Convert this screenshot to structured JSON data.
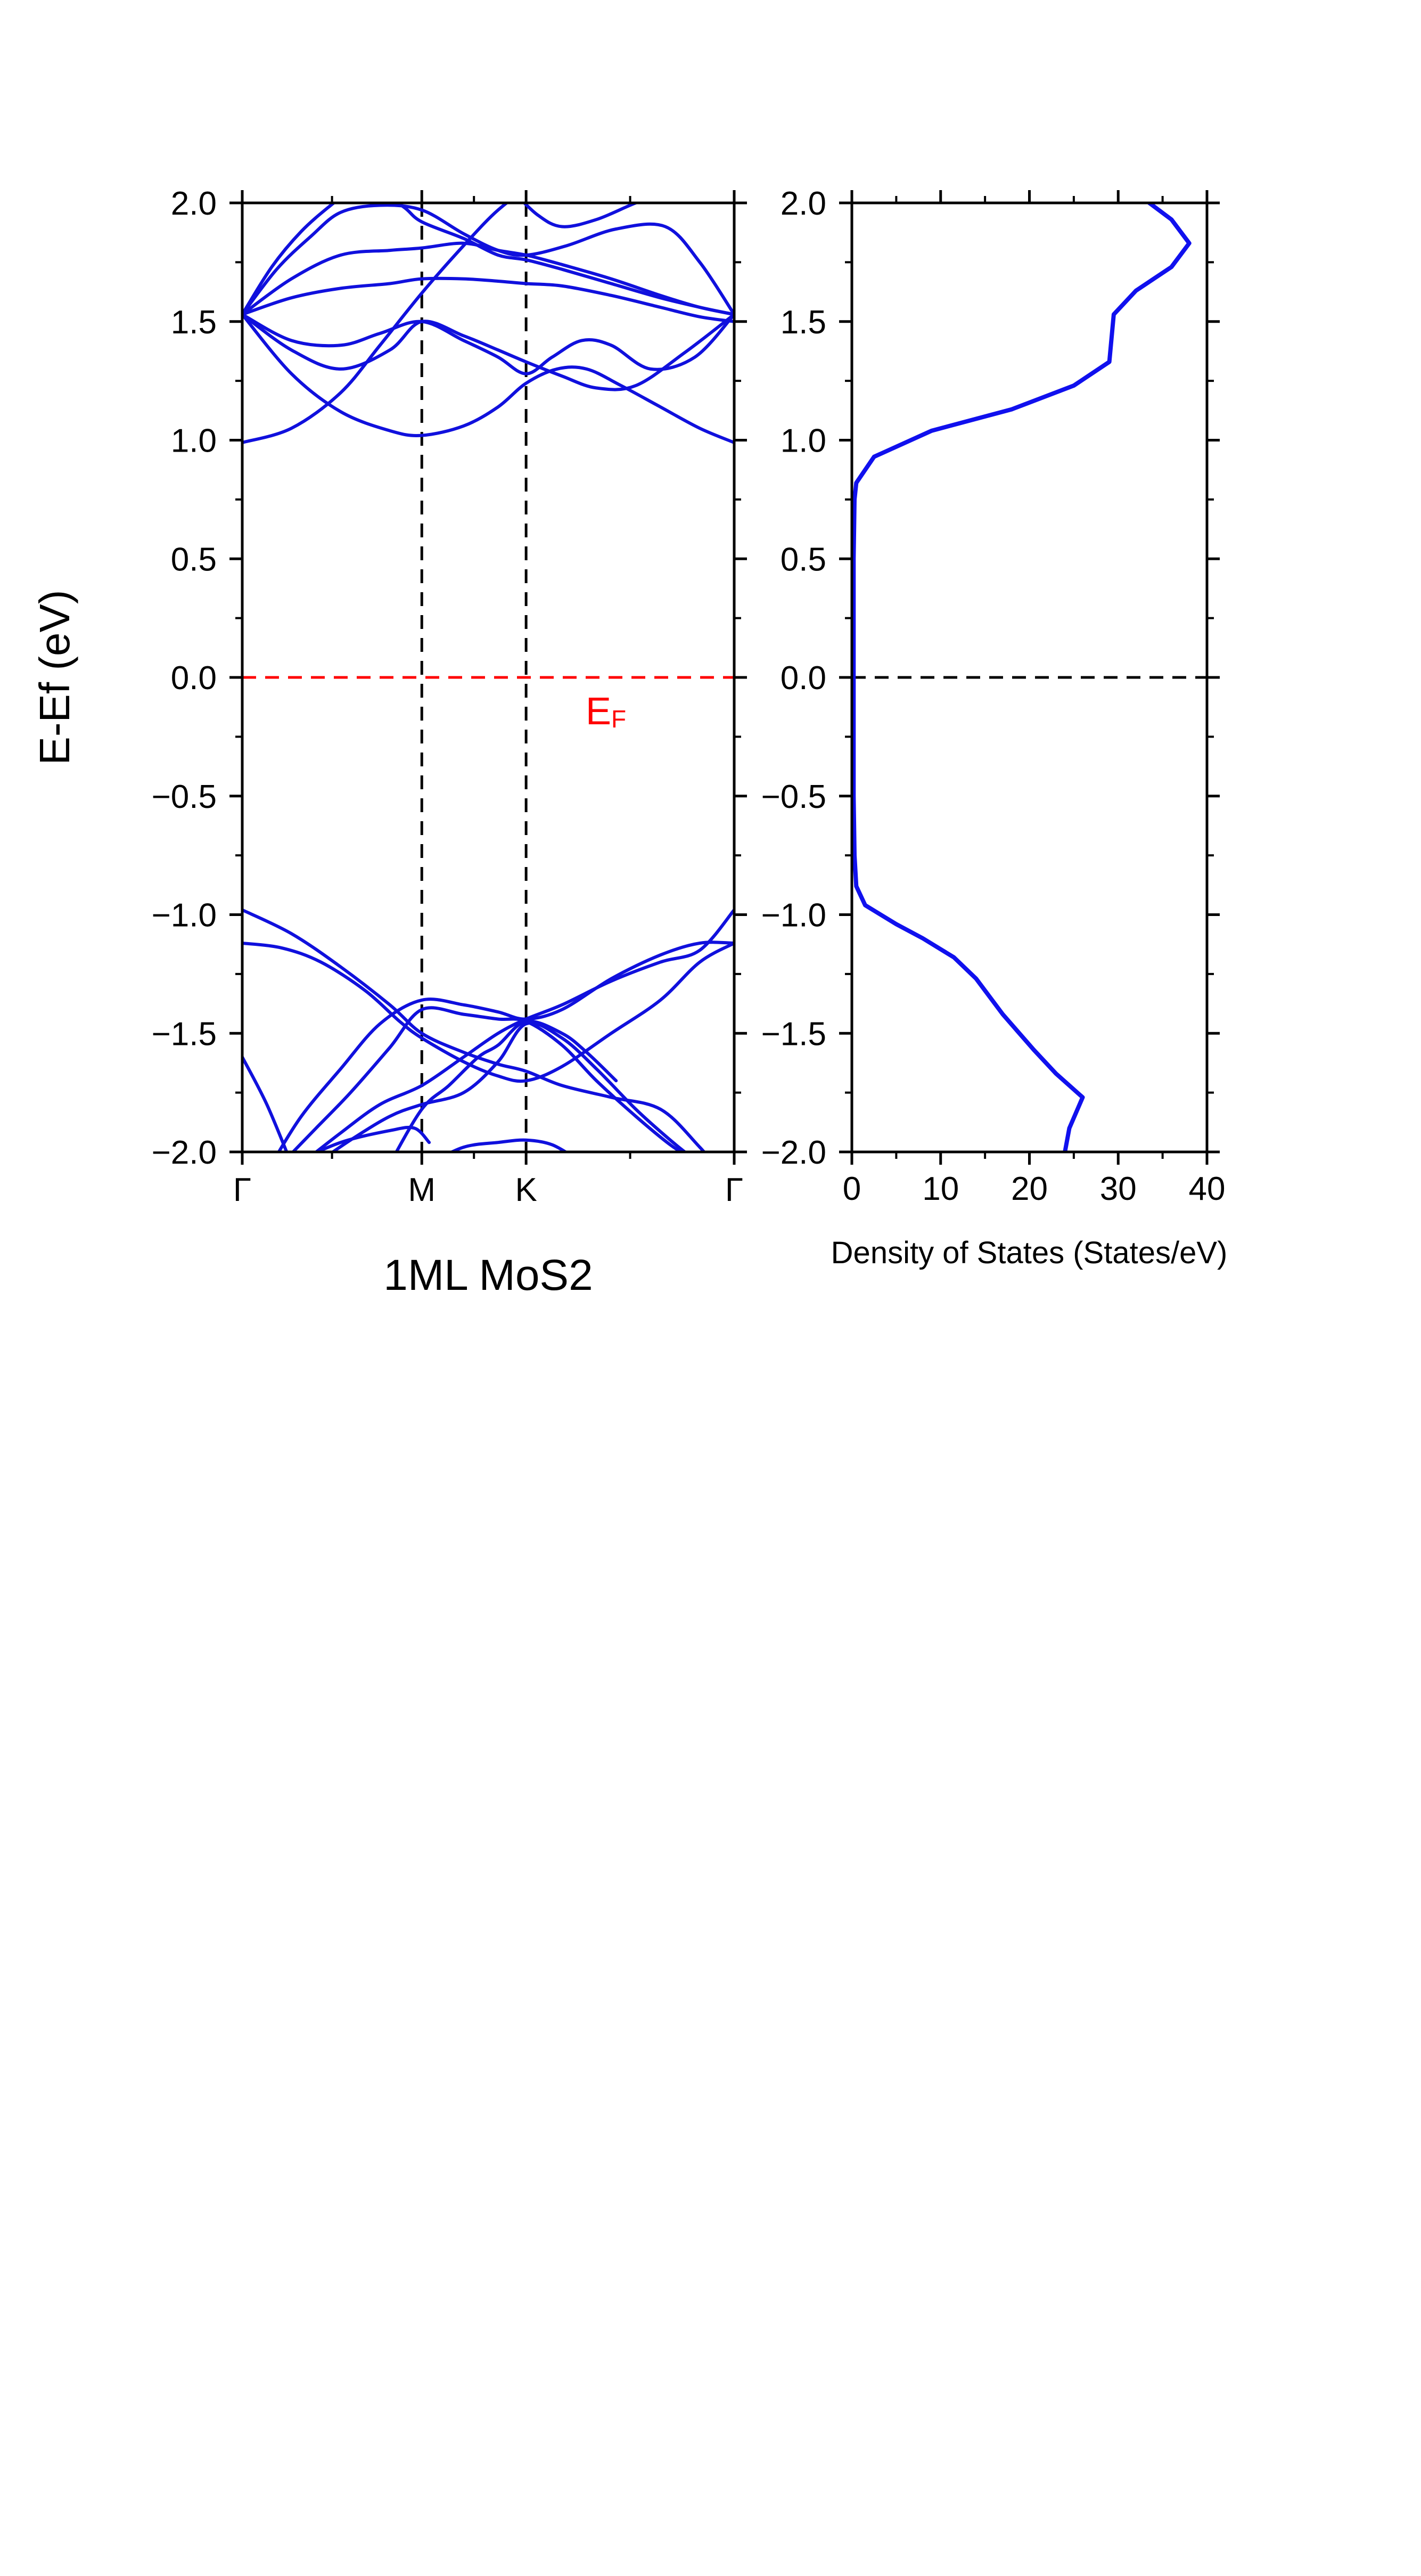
{
  "colors": {
    "band": "#1010dd",
    "fermi_line": "#ff0000",
    "fermi_label": "#ff0000",
    "dos_line": "#1010ee",
    "axis": "#000000"
  },
  "chart_data": [
    {
      "type": "line",
      "subtype": "band-structure",
      "xlabel": "1ML MoS2",
      "ylabel": "E-Ef (eV)",
      "ylim": [
        -2.0,
        2.0
      ],
      "xlim": [
        0,
        1
      ],
      "y_ticks": [
        "2.0",
        "1.5",
        "1.0",
        "0.5",
        "0.0",
        "−0.5",
        "−1.0",
        "−1.5",
        "−2.0"
      ],
      "y_tick_values": [
        2.0,
        1.5,
        1.0,
        0.5,
        0.0,
        -0.5,
        -1.0,
        -1.5,
        -2.0
      ],
      "k_points": [
        {
          "label": "Γ",
          "x": 0.0
        },
        {
          "label": "M",
          "x": 0.365
        },
        {
          "label": "K",
          "x": 0.577
        },
        {
          "label": "Γ",
          "x": 1.0
        }
      ],
      "fermi_level": {
        "value": 0.0,
        "label_main": "E",
        "label_sub": "F"
      },
      "series": [
        {
          "x": [
            0,
            0.1,
            0.2,
            0.28,
            0.365,
            0.45,
            0.52,
            0.577,
            0.65,
            0.75,
            0.87,
            1.0
          ],
          "y": [
            0.99,
            1.05,
            1.2,
            1.4,
            1.62,
            1.82,
            1.97,
            2.05,
            2.1,
            2.1,
            2.1,
            2.1
          ]
        },
        {
          "x": [
            0,
            0.1,
            0.2,
            0.3,
            0.365,
            0.45,
            0.52,
            0.577,
            0.64,
            0.7,
            0.77,
            0.85,
            0.93,
            1.0
          ],
          "y": [
            1.53,
            1.28,
            1.12,
            1.04,
            1.02,
            1.06,
            1.14,
            1.24,
            1.3,
            1.3,
            1.23,
            1.14,
            1.05,
            0.99
          ]
        },
        {
          "x": [
            0,
            0.1,
            0.2,
            0.3,
            0.365,
            0.45,
            0.52,
            0.577,
            0.65,
            0.72,
            0.8,
            0.9,
            1.0
          ],
          "y": [
            1.53,
            1.38,
            1.3,
            1.38,
            1.5,
            1.44,
            1.38,
            1.33,
            1.27,
            1.22,
            1.23,
            1.37,
            1.53
          ]
        },
        {
          "x": [
            0,
            0.1,
            0.2,
            0.28,
            0.365,
            0.45,
            0.52,
            0.577,
            0.63,
            0.69,
            0.75,
            0.83,
            0.92,
            1.0
          ],
          "y": [
            1.53,
            1.42,
            1.4,
            1.45,
            1.5,
            1.42,
            1.35,
            1.28,
            1.35,
            1.42,
            1.4,
            1.3,
            1.35,
            1.53
          ]
        },
        {
          "x": [
            0,
            0.1,
            0.2,
            0.3,
            0.365,
            0.45,
            0.52,
            0.577,
            0.65,
            0.75,
            0.85,
            0.93,
            1.0
          ],
          "y": [
            1.53,
            1.6,
            1.64,
            1.66,
            1.68,
            1.68,
            1.67,
            1.66,
            1.65,
            1.61,
            1.56,
            1.52,
            1.5
          ]
        },
        {
          "x": [
            0,
            0.1,
            0.2,
            0.3,
            0.365,
            0.45,
            0.52,
            0.577,
            0.65,
            0.75,
            0.85,
            0.93,
            1.0
          ],
          "y": [
            1.53,
            1.68,
            1.78,
            1.8,
            1.81,
            1.83,
            1.8,
            1.78,
            1.74,
            1.68,
            1.61,
            1.56,
            1.53
          ]
        },
        {
          "x": [
            0,
            0.07,
            0.14,
            0.2,
            0.28,
            0.365,
            0.45,
            0.52,
            0.577,
            0.66,
            0.76,
            0.86,
            0.93,
            1.0
          ],
          "y": [
            1.53,
            1.72,
            1.86,
            1.96,
            1.99,
            1.97,
            1.87,
            1.8,
            1.78,
            1.82,
            1.89,
            1.9,
            1.75,
            1.53
          ]
        },
        {
          "x": [
            0,
            0.06,
            0.12,
            0.18,
            0.22
          ],
          "y": [
            1.53,
            1.73,
            1.88,
            1.99,
            2.05
          ]
        },
        {
          "x": [
            0.28,
            0.33,
            0.365,
            0.45,
            0.52,
            0.577,
            0.65,
            0.75,
            0.85,
            0.93,
            1.0
          ],
          "y": [
            2.05,
            1.98,
            1.92,
            1.85,
            1.78,
            1.76,
            1.72,
            1.66,
            1.6,
            1.56,
            1.53
          ]
        },
        {
          "x": [
            0.55,
            0.6,
            0.65,
            0.72,
            0.8,
            0.87
          ],
          "y": [
            2.05,
            1.95,
            1.9,
            1.93,
            2.0,
            2.05
          ]
        },
        {
          "x": [
            0,
            0.1,
            0.2,
            0.3,
            0.365,
            0.45,
            0.52,
            0.577,
            0.65,
            0.75,
            0.85,
            0.93,
            1.0
          ],
          "y": [
            -0.98,
            -1.08,
            -1.22,
            -1.38,
            -1.5,
            -1.58,
            -1.63,
            -1.66,
            -1.72,
            -1.77,
            -1.82,
            -1.98,
            -2.15
          ]
        },
        {
          "x": [
            0,
            0.08,
            0.16,
            0.25,
            0.32,
            0.365,
            0.45,
            0.52,
            0.577,
            0.65,
            0.75,
            0.85,
            0.93,
            1.0
          ],
          "y": [
            -1.12,
            -1.14,
            -1.2,
            -1.32,
            -1.45,
            -1.52,
            -1.62,
            -1.68,
            -1.7,
            -1.64,
            -1.5,
            -1.36,
            -1.2,
            -1.12
          ]
        },
        {
          "x": [
            0.06,
            0.12,
            0.2,
            0.28,
            0.365,
            0.45,
            0.52,
            0.577,
            0.65,
            0.75,
            0.85,
            0.93,
            1.0
          ],
          "y": [
            -2.05,
            -1.85,
            -1.65,
            -1.46,
            -1.36,
            -1.38,
            -1.41,
            -1.44,
            -1.4,
            -1.27,
            -1.17,
            -1.12,
            -1.12
          ]
        },
        {
          "x": [
            0.08,
            0.15,
            0.22,
            0.3,
            0.365,
            0.45,
            0.52,
            0.577,
            0.65,
            0.72,
            0.8,
            0.87,
            0.93,
            1.0
          ],
          "y": [
            -2.05,
            -1.9,
            -1.75,
            -1.56,
            -1.4,
            -1.42,
            -1.44,
            -1.45,
            -1.55,
            -1.7,
            -1.85,
            -1.97,
            -2.05,
            -2.15
          ]
        },
        {
          "x": [
            0.12,
            0.2,
            0.28,
            0.365,
            0.45,
            0.52,
            0.577,
            0.65,
            0.75,
            0.85,
            0.93,
            1.0
          ],
          "y": [
            -2.05,
            -1.92,
            -1.8,
            -1.72,
            -1.6,
            -1.5,
            -1.44,
            -1.38,
            -1.28,
            -1.2,
            -1.15,
            -0.98
          ]
        },
        {
          "x": [
            0.15,
            0.22,
            0.3,
            0.365,
            0.45,
            0.52,
            0.577,
            0.65,
            0.72,
            0.8,
            0.87,
            0.93
          ],
          "y": [
            -2.05,
            -1.95,
            -1.85,
            -1.8,
            -1.75,
            -1.62,
            -1.46,
            -1.52,
            -1.65,
            -1.82,
            -1.95,
            -2.05
          ]
        },
        {
          "x": [
            0.3,
            0.365,
            0.42,
            0.48,
            0.52,
            0.577,
            0.65,
            0.7,
            0.76
          ],
          "y": [
            -2.05,
            -1.82,
            -1.72,
            -1.6,
            -1.55,
            -1.45,
            -1.5,
            -1.58,
            -1.7
          ]
        },
        {
          "x": [
            0.38,
            0.45,
            0.52,
            0.577,
            0.63,
            0.68
          ],
          "y": [
            -2.05,
            -1.98,
            -1.96,
            -1.95,
            -1.97,
            -2.03
          ]
        },
        {
          "x": [
            0.1,
            0.2,
            0.3,
            0.35,
            0.38
          ],
          "y": [
            -2.05,
            -1.96,
            -1.91,
            -1.9,
            -1.96
          ]
        },
        {
          "x": [
            0,
            0.05,
            0.1
          ],
          "y": [
            -1.6,
            -1.8,
            -2.05
          ]
        }
      ]
    },
    {
      "type": "line",
      "subtype": "density-of-states",
      "xlabel": "Density of States (States/eV)",
      "ylabel": "",
      "xlim": [
        0,
        40
      ],
      "ylim": [
        -2.0,
        2.0
      ],
      "x_ticks": [
        "0",
        "10",
        "20",
        "30",
        "40"
      ],
      "x_tick_values": [
        0,
        10,
        20,
        30,
        40
      ],
      "y_ticks": [
        "2.0",
        "1.5",
        "1.0",
        "0.5",
        "0.0",
        "−0.5",
        "−1.0",
        "−1.5",
        "−2.0"
      ],
      "y_tick_values": [
        2.0,
        1.5,
        1.0,
        0.5,
        0.0,
        -0.5,
        -1.0,
        -1.5,
        -2.0
      ],
      "fermi_level": {
        "value": 0.0
      },
      "series": [
        {
          "x": [
            24,
            24.5,
            26,
            23,
            20.5,
            17,
            14,
            11.5,
            8,
            5,
            1.5,
            0.5,
            0.3,
            0.2,
            0.2,
            0.2,
            0.3,
            0.5,
            2.5,
            9,
            18,
            25,
            29,
            29.5,
            32,
            36,
            38,
            36,
            33.5
          ],
          "y": [
            -2.0,
            -1.9,
            -1.77,
            -1.67,
            -1.57,
            -1.42,
            -1.27,
            -1.18,
            -1.1,
            -1.04,
            -0.96,
            -0.88,
            -0.75,
            -0.5,
            0.0,
            0.5,
            0.75,
            0.82,
            0.93,
            1.04,
            1.13,
            1.23,
            1.33,
            1.53,
            1.63,
            1.73,
            1.83,
            1.93,
            2.0
          ]
        }
      ]
    }
  ]
}
